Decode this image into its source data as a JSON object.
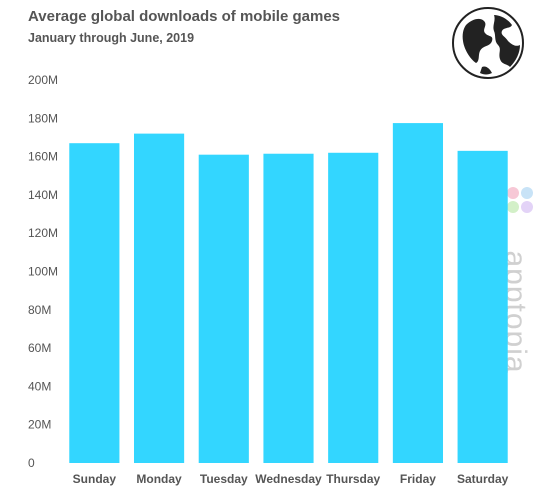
{
  "title": "Average global downloads of mobile games",
  "subtitle": "January through June, 2019",
  "watermark": "apptopia",
  "icons": {
    "globe": "globe-icon",
    "logo": "apptopia-logo-icon"
  },
  "colors": {
    "bar": "#33d6ff",
    "axis_text": "#555555",
    "grid": "#e6e6e6"
  },
  "chart_data": {
    "type": "bar",
    "categories": [
      "Sunday",
      "Monday",
      "Tuesday",
      "Wednesday",
      "Thursday",
      "Friday",
      "Saturday"
    ],
    "values": [
      167,
      172,
      161,
      161.5,
      162,
      177.5,
      163
    ],
    "ylim": [
      0,
      200
    ],
    "yticks": [
      0,
      20,
      40,
      60,
      80,
      100,
      120,
      140,
      160,
      180,
      200
    ],
    "ytick_labels": [
      "0",
      "20M",
      "40M",
      "60M",
      "80M",
      "100M",
      "120M",
      "140M",
      "160M",
      "180M",
      "200M"
    ],
    "unit": "M",
    "grid": false,
    "legend": "none"
  }
}
